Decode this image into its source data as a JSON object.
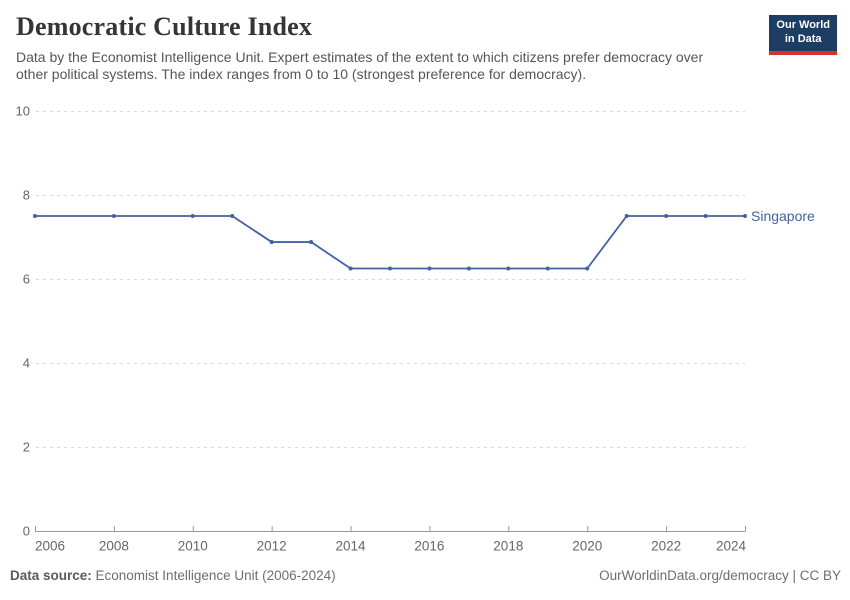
{
  "header": {
    "title": "Democratic Culture Index",
    "subtitle_lines": [
      "Data by the Economist Intelligence Unit. Expert estimates of the extent to which citizens prefer democracy over",
      "other political systems. The index ranges from 0 to 10 (strongest preference for democracy)."
    ],
    "logo": {
      "line1": "Our World",
      "line2": "in Data"
    }
  },
  "chart_data": {
    "type": "line",
    "title": "Democratic Culture Index",
    "x": [
      2006,
      2008,
      2010,
      2011,
      2012,
      2013,
      2014,
      2015,
      2016,
      2017,
      2018,
      2019,
      2020,
      2021,
      2022,
      2023,
      2024
    ],
    "series": [
      {
        "name": "Singapore",
        "color": "#42639f",
        "values": [
          7.5,
          7.5,
          7.5,
          7.5,
          6.88,
          6.88,
          6.25,
          6.25,
          6.25,
          6.25,
          6.25,
          6.25,
          6.25,
          7.5,
          7.5,
          7.5,
          7.5
        ]
      }
    ],
    "xlim": [
      2006,
      2024
    ],
    "ylim": [
      0,
      10
    ],
    "xticks": [
      2006,
      2008,
      2010,
      2012,
      2014,
      2016,
      2018,
      2020,
      2022,
      2024
    ],
    "yticks": [
      0,
      2,
      4,
      6,
      8,
      10
    ],
    "grid": "horizontal-dashed",
    "legend_position": "line-end-label",
    "colors": {
      "grid": "#d9d9d9",
      "axis": "#999999",
      "tick_label": "#666666"
    }
  },
  "footer": {
    "source_label": "Data source:",
    "source_text": " Economist Intelligence Unit (2006-2024)",
    "credit": "OurWorldinData.org/democracy | CC BY"
  }
}
